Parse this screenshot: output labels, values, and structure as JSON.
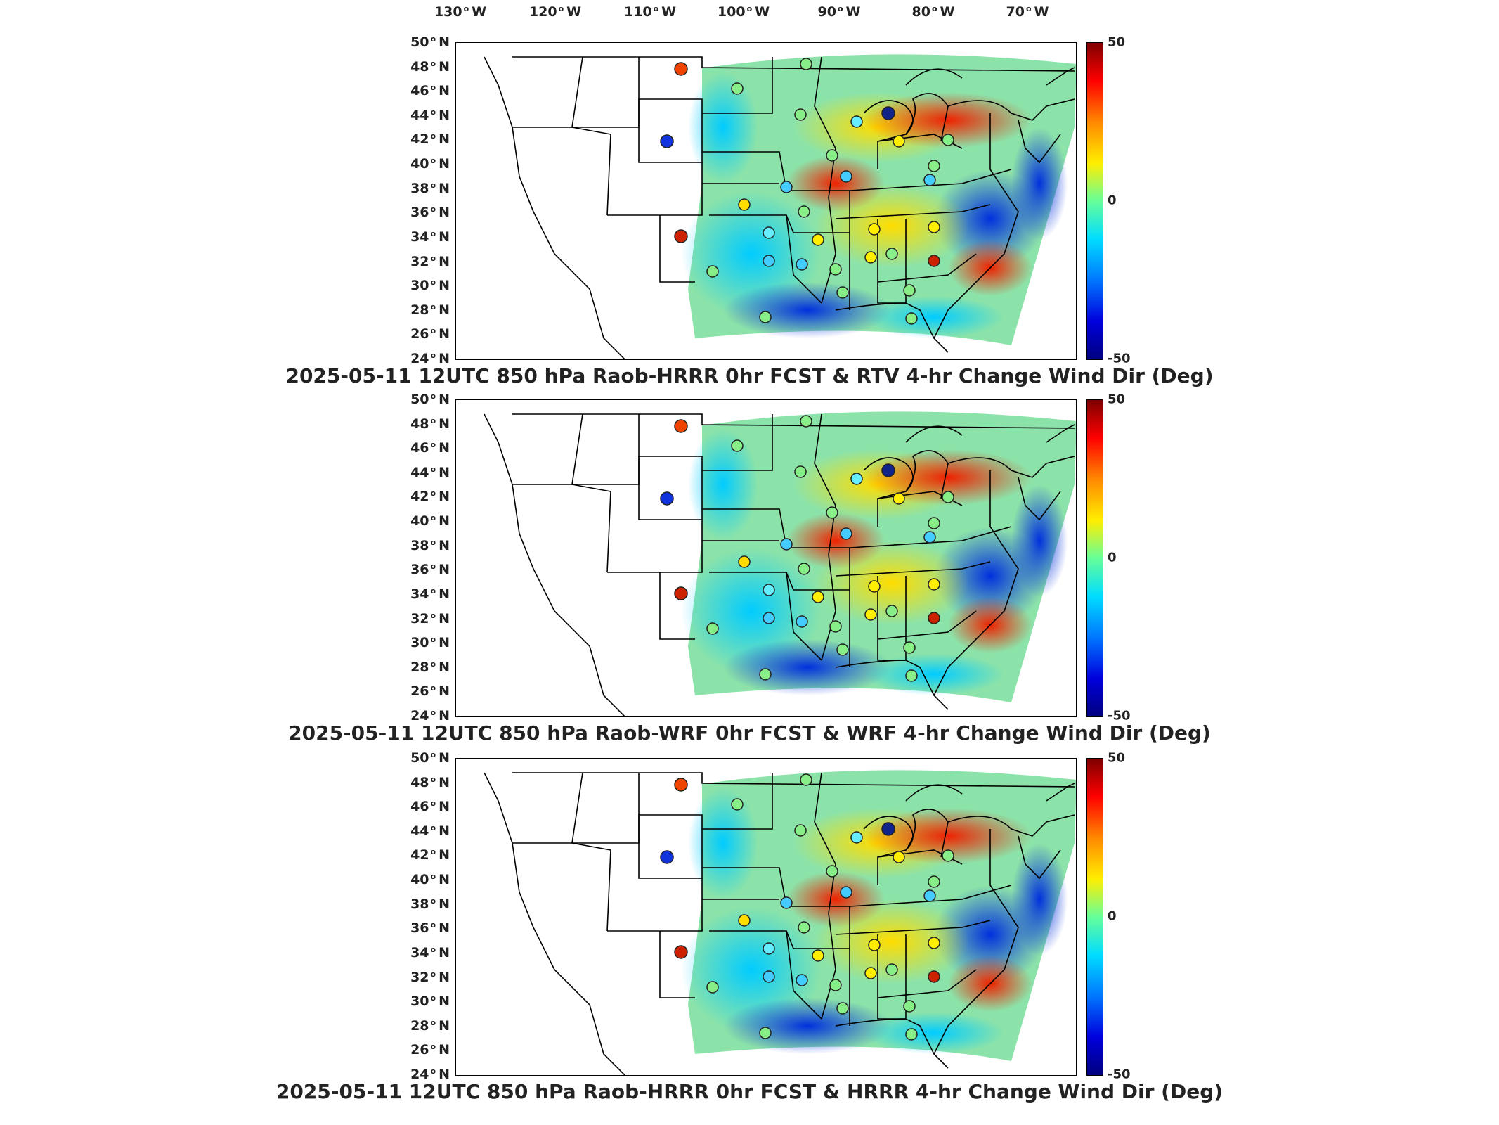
{
  "lon_labels": [
    "130",
    "120",
    "110",
    "100",
    "90",
    "80",
    "70"
  ],
  "lon_suffix": "W",
  "lat_labels": [
    "50",
    "48",
    "46",
    "44",
    "42",
    "40",
    "38",
    "36",
    "34",
    "32",
    "30",
    "28",
    "26",
    "24"
  ],
  "lat_suffix": "N",
  "colorbar": {
    "max": "50",
    "mid": "0",
    "min": "-50"
  },
  "panels": [
    {
      "title": "2025-05-11 12UTC 850 hPa Raob-HRRR 0hr FCST & RTV 4-hr Change Wind Dir (Deg)"
    },
    {
      "title": "2025-05-11 12UTC 850 hPa Raob-WRF 0hr FCST & WRF 4-hr Change Wind Dir (Deg)"
    },
    {
      "title": "2025-05-11 12UTC 850 hPa Raob-HRRR 0hr FCST & HRRR 4-hr Change Wind Dir (Deg)"
    }
  ],
  "colors": {
    "max": "#7f0000",
    "mid": "#66ff99",
    "min": "#00007f"
  }
}
